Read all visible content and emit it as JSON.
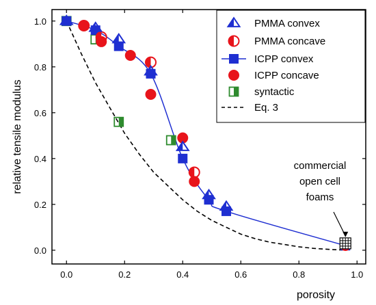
{
  "chart_data": {
    "type": "scatter",
    "xlabel": "porosity",
    "ylabel": "relative tensile modulus",
    "xlim": [
      -0.05,
      1.03
    ],
    "ylim": [
      -0.06,
      1.05
    ],
    "xticks": [
      "0.0",
      "0.2",
      "0.4",
      "0.6",
      "0.8",
      "1.0"
    ],
    "yticks": [
      "0.0",
      "0.2",
      "0.4",
      "0.6",
      "0.8",
      "1.0"
    ],
    "legend_position": "top-right",
    "annotation": {
      "lines": [
        "commercial",
        "open cell",
        "foams"
      ],
      "target": [
        0.96,
        0.03
      ]
    },
    "series": [
      {
        "name": "PMMA convex",
        "marker": "triangle-half",
        "color": "#1f2fd1",
        "line": false,
        "x": [
          0.0,
          0.1,
          0.18,
          0.29,
          0.4,
          0.49,
          0.55
        ],
        "y": [
          1.0,
          0.97,
          0.92,
          0.78,
          0.45,
          0.24,
          0.19
        ]
      },
      {
        "name": "PMMA concave",
        "marker": "circle-half",
        "color": "#e8141b",
        "line": false,
        "x": [
          0.06,
          0.12,
          0.29,
          0.44,
          0.96
        ],
        "y": [
          0.98,
          0.93,
          0.82,
          0.34,
          0.02
        ]
      },
      {
        "name": "ICPP convex",
        "marker": "square",
        "color": "#1f2fd1",
        "line": true,
        "x": [
          0.0,
          0.1,
          0.18,
          0.29,
          0.4,
          0.49,
          0.55,
          0.96
        ],
        "y": [
          1.0,
          0.96,
          0.89,
          0.77,
          0.4,
          0.22,
          0.17,
          0.02
        ]
      },
      {
        "name": "ICPP concave",
        "marker": "circle",
        "color": "#e8141b",
        "line": false,
        "x": [
          0.06,
          0.12,
          0.22,
          0.29,
          0.4,
          0.44
        ],
        "y": [
          0.98,
          0.91,
          0.85,
          0.68,
          0.49,
          0.3
        ]
      },
      {
        "name": "syntactic",
        "marker": "square-half",
        "color": "#2e8b2e",
        "line": false,
        "x": [
          0.0,
          0.1,
          0.18,
          0.36
        ],
        "y": [
          1.0,
          0.92,
          0.56,
          0.48
        ]
      },
      {
        "name": "Eq. 3",
        "marker": "none",
        "color": "#000000",
        "line": "dashed",
        "x": [
          0.0,
          0.05,
          0.1,
          0.15,
          0.2,
          0.25,
          0.3,
          0.35,
          0.4,
          0.45,
          0.5,
          0.55,
          0.6,
          0.65,
          0.7,
          0.75,
          0.8,
          0.85,
          0.9,
          0.95
        ],
        "y": [
          1.0,
          0.86,
          0.73,
          0.62,
          0.51,
          0.42,
          0.34,
          0.28,
          0.22,
          0.17,
          0.13,
          0.1,
          0.07,
          0.05,
          0.035,
          0.025,
          0.015,
          0.008,
          0.004,
          0.001
        ]
      }
    ]
  }
}
